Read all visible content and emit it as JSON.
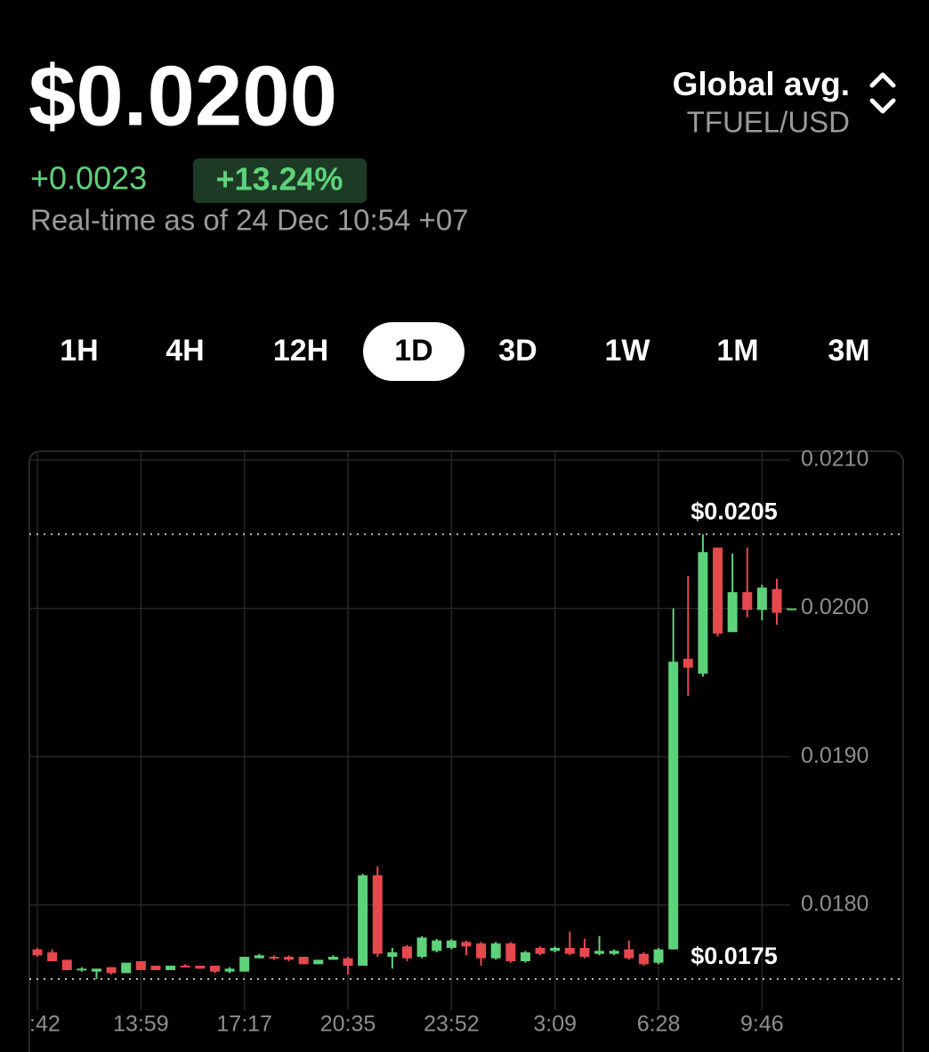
{
  "header": {
    "price": "$0.0200",
    "change": "+0.0023",
    "change_percent": "+13.24%",
    "timestamp": "Real-time as of 24 Dec 10:54 +07",
    "source": "Global avg.",
    "pair": "TFUEL/USD"
  },
  "tabs": {
    "items": [
      "1H",
      "4H",
      "12H",
      "1D",
      "3D",
      "1W",
      "1M",
      "3M"
    ],
    "selected": 3
  },
  "chart_data": {
    "type": "candlestick",
    "categories": [
      ":42",
      null,
      null,
      null,
      null,
      null,
      null,
      "13:59",
      null,
      null,
      null,
      null,
      null,
      null,
      "17:17",
      null,
      null,
      null,
      null,
      null,
      null,
      "20:35",
      null,
      null,
      null,
      null,
      null,
      null,
      "23:52",
      null,
      null,
      null,
      null,
      null,
      null,
      "3:09",
      null,
      null,
      null,
      null,
      null,
      null,
      "6:28",
      null,
      null,
      null,
      null,
      null,
      null,
      "9:46",
      null,
      null
    ],
    "open": [
      0.0177,
      0.01768,
      0.01763,
      0.01756,
      0.01755,
      0.01758,
      0.01754,
      0.01762,
      0.01759,
      0.01756,
      0.01759,
      0.01759,
      0.01759,
      0.01755,
      0.01755,
      0.01764,
      0.01765,
      0.01765,
      0.01765,
      0.0176,
      0.01763,
      0.01764,
      0.01759,
      0.0182,
      0.01765,
      0.01772,
      0.01765,
      0.01769,
      0.01771,
      0.01775,
      0.01774,
      0.01764,
      0.01774,
      0.01762,
      0.01771,
      0.01769,
      0.01771,
      0.01771,
      0.01767,
      0.01767,
      0.0177,
      0.01767,
      0.01761,
      0.0177,
      0.01966,
      0.01956,
      0.02041,
      0.01984,
      0.02011,
      0.01999,
      0.02013,
      0.01999
    ],
    "high": [
      0.01771,
      0.0177,
      0.01763,
      0.01758,
      0.01757,
      0.01758,
      0.01761,
      0.01762,
      0.01759,
      0.01759,
      0.0176,
      0.01759,
      0.01759,
      0.01758,
      0.01765,
      0.01767,
      0.01766,
      0.01766,
      0.01765,
      0.01763,
      0.01766,
      0.01765,
      0.01821,
      0.01826,
      0.01771,
      0.01773,
      0.01779,
      0.01777,
      0.01777,
      0.01776,
      0.01775,
      0.01775,
      0.01775,
      0.01769,
      0.01772,
      0.01772,
      0.01782,
      0.01777,
      0.01779,
      0.0177,
      0.01776,
      0.01768,
      0.01771,
      0.02,
      0.02022,
      0.0205,
      0.02041,
      0.02037,
      0.02041,
      0.02016,
      0.0202,
      0.02
    ],
    "low": [
      0.01765,
      0.01762,
      0.01756,
      0.01755,
      0.0175,
      0.01753,
      0.01754,
      0.01756,
      0.01756,
      0.01756,
      0.01758,
      0.01757,
      0.01754,
      0.01754,
      0.01755,
      0.01764,
      0.01763,
      0.01762,
      0.0176,
      0.0176,
      0.01763,
      0.01753,
      0.01759,
      0.01765,
      0.01757,
      0.01762,
      0.01764,
      0.01768,
      0.0177,
      0.01766,
      0.01759,
      0.01763,
      0.01761,
      0.01761,
      0.01766,
      0.01768,
      0.01766,
      0.01764,
      0.01766,
      0.01766,
      0.01763,
      0.01759,
      0.0176,
      0.0177,
      0.01941,
      0.01954,
      0.01981,
      0.01984,
      0.01994,
      0.01992,
      0.01989,
      0.01999
    ],
    "close": [
      0.01766,
      0.01762,
      0.01756,
      0.01757,
      0.01757,
      0.01754,
      0.01761,
      0.01756,
      0.01756,
      0.01759,
      0.01758,
      0.01757,
      0.01755,
      0.01757,
      0.01765,
      0.01766,
      0.01764,
      0.01763,
      0.0176,
      0.01763,
      0.01765,
      0.01759,
      0.0182,
      0.01767,
      0.01768,
      0.01764,
      0.01778,
      0.01776,
      0.01776,
      0.01772,
      0.01764,
      0.01774,
      0.01762,
      0.01768,
      0.01767,
      0.01771,
      0.01767,
      0.01765,
      0.01769,
      0.01769,
      0.01764,
      0.0176,
      0.0177,
      0.01964,
      0.0196,
      0.02038,
      0.01983,
      0.02011,
      0.01999,
      0.02014,
      0.01997,
      0.02
    ],
    "up_color": "#5ed27a",
    "down_color": "#e5484d",
    "ylim": [
      0.01735,
      0.02106
    ],
    "yticks": [
      {
        "value": 0.021,
        "label": "0.0210"
      },
      {
        "value": 0.02,
        "label": "0.0200"
      },
      {
        "value": 0.019,
        "label": "0.0190"
      },
      {
        "value": 0.018,
        "label": "0.0180"
      }
    ],
    "grid": true,
    "annotations": [
      {
        "value": 0.0205,
        "label": "$0.0205"
      },
      {
        "value": 0.0175,
        "label": "$0.0175"
      }
    ]
  }
}
